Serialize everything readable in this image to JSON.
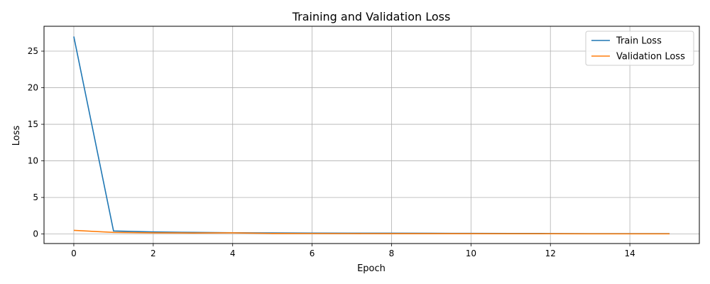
{
  "chart_data": {
    "type": "line",
    "title": "Training and Validation Loss",
    "xlabel": "Epoch",
    "ylabel": "Loss",
    "xlim": [
      -0.75,
      15.75
    ],
    "ylim": [
      -1.3,
      28.4
    ],
    "xticks": [
      0,
      2,
      4,
      6,
      8,
      10,
      12,
      14
    ],
    "yticks": [
      0,
      5,
      10,
      15,
      20,
      25
    ],
    "grid": true,
    "legend_position": "top-right",
    "x": [
      0,
      1,
      2,
      3,
      4,
      5,
      6,
      7,
      8,
      9,
      10,
      11,
      12,
      13,
      14,
      15
    ],
    "series": [
      {
        "name": "Train Loss",
        "color": "#1f77b4",
        "values": [
          27.0,
          0.42,
          0.28,
          0.22,
          0.18,
          0.15,
          0.13,
          0.12,
          0.11,
          0.1,
          0.09,
          0.08,
          0.07,
          0.06,
          0.05,
          0.05
        ]
      },
      {
        "name": "Validation Loss",
        "color": "#ff7f0e",
        "values": [
          0.5,
          0.22,
          0.16,
          0.14,
          0.16,
          0.08,
          0.07,
          0.06,
          0.05,
          0.05,
          0.05,
          0.04,
          0.04,
          0.03,
          0.03,
          0.03
        ]
      }
    ]
  }
}
